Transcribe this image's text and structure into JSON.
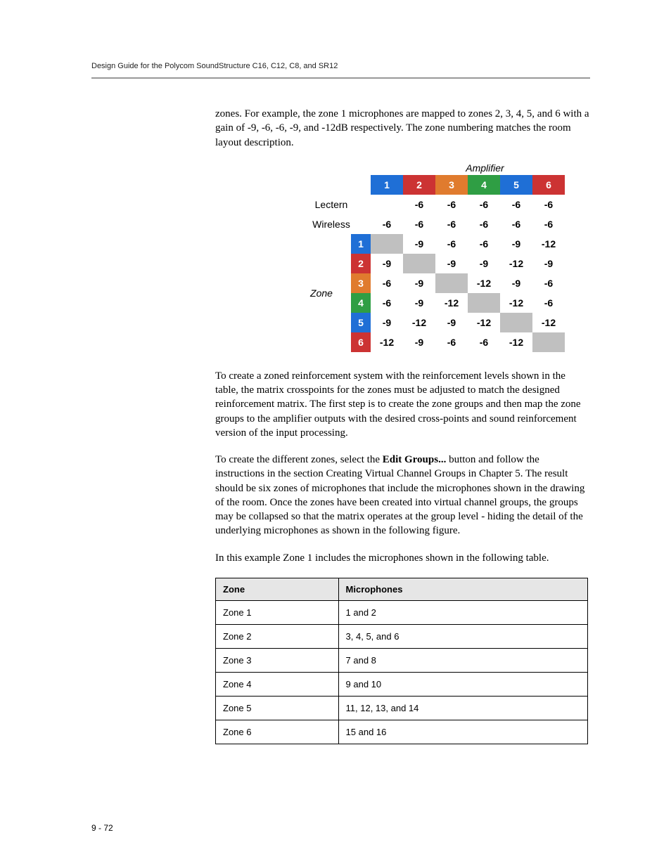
{
  "header": {
    "running_title": "Design Guide for the Polycom SoundStructure C16, C12, C8, and SR12",
    "page_number": "9 - 72"
  },
  "paragraphs": {
    "p1": "zones. For example, the zone 1 microphones are mapped to zones 2, 3, 4, 5, and 6 with a gain of -9, -6, -6, -9, and -12dB respectively. The zone numbering matches the room layout description.",
    "p2": "To create a zoned reinforcement system with the reinforcement levels shown in the table, the matrix crosspoints for the zones must be adjusted to match the designed reinforcement matrix. The first step is to create the zone groups and then map the zone groups to the amplifier outputs with the desired cross-points and sound reinforcement version of the input processing.",
    "p3a": "To create the different zones, select the ",
    "p3b": "Edit Groups...",
    "p3c": " button and follow the instructions in the section Creating Virtual Channel Groups in Chapter 5. The result should be six zones of microphones that include the microphones shown in the drawing of the room. Once the zones have been created into virtual channel groups, the groups may be collapsed so that the matrix operates at the group level - hiding the detail of the underlying microphones as shown in the following figure.",
    "p4": "In this example Zone 1 includes the microphones shown in the following table."
  },
  "matrix": {
    "col_title": "Amplifier",
    "row_title": "Zone",
    "col_headers": [
      "1",
      "2",
      "3",
      "4",
      "5",
      "6"
    ],
    "row_labels_top": [
      "Lectern",
      "Wireless"
    ],
    "zone_numbers": [
      "1",
      "2",
      "3",
      "4",
      "5",
      "6"
    ],
    "header_colors": [
      "#1f6fd6",
      "#cc3333",
      "#e07b2e",
      "#2f9e44",
      "#1f6fd6",
      "#cc3333"
    ],
    "side_colors": [
      "#1f6fd6",
      "#cc3333",
      "#e07b2e",
      "#2f9e44",
      "#1f6fd6",
      "#cc3333"
    ],
    "rows": [
      {
        "label": "Lectern",
        "cells": [
          "",
          "-6",
          "-6",
          "-6",
          "-6",
          "-6"
        ]
      },
      {
        "label": "Wireless",
        "cells": [
          "-6",
          "-6",
          "-6",
          "-6",
          "-6",
          "-6"
        ]
      },
      {
        "label": "1",
        "cells": [
          "",
          "-9",
          "-6",
          "-6",
          "-9",
          "-12"
        ]
      },
      {
        "label": "2",
        "cells": [
          "-9",
          "",
          "-9",
          "-9",
          "-12",
          "-9"
        ]
      },
      {
        "label": "3",
        "cells": [
          "-6",
          "-9",
          "",
          "-12",
          "-9",
          "-6"
        ]
      },
      {
        "label": "4",
        "cells": [
          "-6",
          "-9",
          "-12",
          "",
          "-12",
          "-6"
        ]
      },
      {
        "label": "5",
        "cells": [
          "-9",
          "-12",
          "-9",
          "-12",
          "",
          "-12"
        ]
      },
      {
        "label": "6",
        "cells": [
          "-12",
          "-9",
          "-6",
          "-6",
          "-12",
          ""
        ]
      }
    ],
    "diag_color": "#c0c0c0"
  },
  "zone_table": {
    "headers": [
      "Zone",
      "Microphones"
    ],
    "rows": [
      [
        "Zone 1",
        "1 and 2"
      ],
      [
        "Zone 2",
        "3, 4, 5, and 6"
      ],
      [
        "Zone 3",
        "7 and 8"
      ],
      [
        "Zone 4",
        "9 and 10"
      ],
      [
        "Zone 5",
        "11, 12, 13, and 14"
      ],
      [
        "Zone 6",
        "15 and 16"
      ]
    ]
  }
}
